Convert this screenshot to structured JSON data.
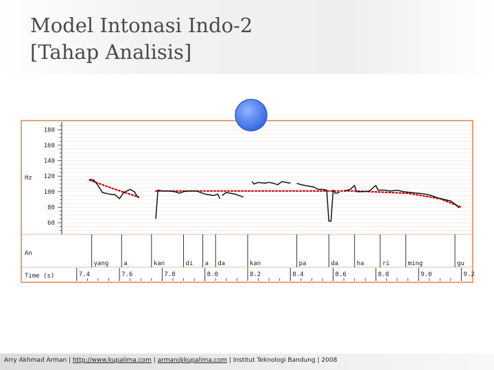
{
  "slide": {
    "title_line1": "Model Intonasi Indo-2",
    "title_line2": "[Tahap Analisis]"
  },
  "footer": {
    "author": "Arry Akhmad Arman",
    "sep": " | ",
    "url": "http://www.kupalima.com",
    "email": "arman@kupalima.com",
    "institution": "Institut Teknologi Bandung",
    "year": "2008"
  },
  "colors": {
    "frame": "#e8a07a",
    "pitch": "#111111",
    "model": "#cc0000",
    "grid": "#f0e0e0",
    "marker_light": "#8fb4ff",
    "marker_dark": "#2f62e0"
  },
  "chart_data": {
    "type": "line",
    "ylabel": "Hz",
    "yticks": [
      60,
      80,
      100,
      120,
      140,
      160,
      180
    ],
    "ylim": [
      45,
      190
    ],
    "xlim": [
      7.33,
      9.25
    ],
    "tier_label": "An",
    "time_label": "Time (s)",
    "xticks": [
      {
        "t": 7.4,
        "label": "7.4"
      },
      {
        "t": 7.6,
        "label": "7.6"
      },
      {
        "t": 7.8,
        "label": "7.8"
      },
      {
        "t": 8.0,
        "label": "8.0"
      },
      {
        "t": 8.2,
        "label": "8.2"
      },
      {
        "t": 8.4,
        "label": "8.4"
      },
      {
        "t": 8.6,
        "label": "8.6"
      },
      {
        "t": 8.8,
        "label": "8.8"
      },
      {
        "t": 9.0,
        "label": "9.0"
      },
      {
        "t": 9.2,
        "label": "9.2"
      }
    ],
    "syllables": [
      {
        "label": "yang",
        "start": 7.47
      },
      {
        "label": "a",
        "start": 7.61
      },
      {
        "label": "kan",
        "start": 7.75
      },
      {
        "label": "di",
        "start": 7.9
      },
      {
        "label": "a",
        "start": 7.99
      },
      {
        "label": "da",
        "start": 8.05
      },
      {
        "label": "kan",
        "start": 8.2
      },
      {
        "label": "pa",
        "start": 8.43
      },
      {
        "label": "da",
        "start": 8.58
      },
      {
        "label": "ha",
        "start": 8.7
      },
      {
        "label": "ri",
        "start": 8.82
      },
      {
        "label": "ming",
        "start": 8.94
      },
      {
        "label": "gu",
        "start": 9.17
      }
    ],
    "pitch_segments": [
      [
        [
          7.46,
          116
        ],
        [
          7.48,
          115
        ],
        [
          7.5,
          108
        ],
        [
          7.52,
          99
        ],
        [
          7.55,
          97
        ],
        [
          7.58,
          96
        ],
        [
          7.6,
          91
        ],
        [
          7.62,
          99
        ],
        [
          7.65,
          103
        ],
        [
          7.67,
          100
        ],
        [
          7.68,
          95
        ],
        [
          7.69,
          92
        ]
      ],
      [
        [
          7.77,
          65
        ],
        [
          7.78,
          102
        ],
        [
          7.8,
          101
        ],
        [
          7.83,
          101
        ],
        [
          7.86,
          100
        ],
        [
          7.88,
          98
        ],
        [
          7.9,
          100
        ],
        [
          7.92,
          101
        ],
        [
          7.94,
          101
        ],
        [
          7.96,
          101
        ],
        [
          7.98,
          99
        ],
        [
          8.0,
          97
        ],
        [
          8.02,
          96
        ],
        [
          8.04,
          95
        ],
        [
          8.06,
          97
        ],
        [
          8.07,
          91
        ]
      ],
      [
        [
          8.08,
          95
        ],
        [
          8.1,
          99
        ],
        [
          8.12,
          98
        ],
        [
          8.14,
          97
        ],
        [
          8.16,
          95
        ],
        [
          8.18,
          93
        ]
      ],
      [
        [
          8.22,
          113
        ],
        [
          8.23,
          110
        ],
        [
          8.25,
          112
        ],
        [
          8.28,
          111
        ],
        [
          8.3,
          112
        ],
        [
          8.32,
          111
        ],
        [
          8.34,
          109
        ],
        [
          8.36,
          113
        ],
        [
          8.38,
          112
        ],
        [
          8.4,
          111
        ]
      ],
      [
        [
          8.43,
          111
        ],
        [
          8.45,
          109
        ],
        [
          8.47,
          108
        ],
        [
          8.49,
          107
        ],
        [
          8.51,
          106
        ],
        [
          8.53,
          103
        ],
        [
          8.55,
          103
        ],
        [
          8.57,
          102
        ],
        [
          8.58,
          62
        ],
        [
          8.59,
          62
        ],
        [
          8.6,
          102
        ],
        [
          8.61,
          98
        ],
        [
          8.63,
          99
        ]
      ],
      [
        [
          8.65,
          101
        ],
        [
          8.68,
          103
        ],
        [
          8.7,
          108
        ],
        [
          8.71,
          100
        ],
        [
          8.74,
          100
        ],
        [
          8.77,
          101
        ],
        [
          8.8,
          108
        ],
        [
          8.81,
          102
        ],
        [
          8.84,
          102
        ],
        [
          8.87,
          101
        ],
        [
          8.9,
          102
        ],
        [
          8.93,
          100
        ],
        [
          8.96,
          99
        ],
        [
          9.0,
          98
        ],
        [
          9.03,
          97
        ],
        [
          9.06,
          95
        ],
        [
          9.09,
          92
        ],
        [
          9.12,
          90
        ],
        [
          9.15,
          88
        ],
        [
          9.17,
          84
        ],
        [
          9.19,
          79
        ]
      ]
    ],
    "model_contour": [
      [
        [
          7.46,
          115
        ],
        [
          7.57,
          104
        ],
        [
          7.69,
          93
        ]
      ],
      [
        [
          7.77,
          101
        ],
        [
          8.7,
          101
        ],
        [
          8.95,
          98
        ],
        [
          9.1,
          91
        ],
        [
          9.2,
          80
        ]
      ]
    ]
  }
}
